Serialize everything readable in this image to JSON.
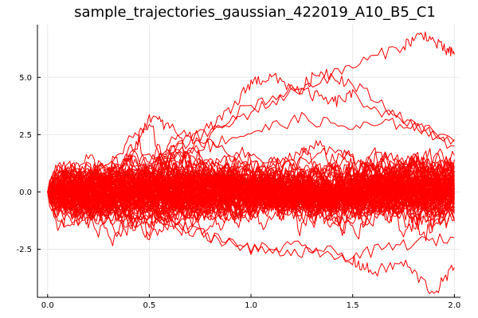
{
  "chart_data": {
    "type": "line",
    "title": "sample_trajectories_gaussian_422019_A10_B5_C1",
    "xlabel": "",
    "ylabel": "",
    "xlim": [
      -0.05,
      2.03
    ],
    "ylim": [
      -4.6,
      7.3
    ],
    "x_ticks": [
      0.0,
      0.5,
      1.0,
      1.5,
      2.0
    ],
    "x_tick_labels": [
      "0.0",
      "0.5",
      "1.0",
      "1.5",
      "2.0"
    ],
    "y_ticks": [
      -2.5,
      0.0,
      2.5,
      5.0
    ],
    "y_tick_labels": [
      "-2.5",
      "0.0",
      "2.5",
      "5.0"
    ],
    "grid": true,
    "legend": "none",
    "line_color": "#ff0000",
    "x_start": 0.0,
    "x_end": 2.0,
    "n_samples": 100,
    "highlighted_series": [
      {
        "x": [
          0.0,
          0.25,
          0.5,
          0.75,
          1.0,
          1.25,
          1.5,
          1.75,
          1.85,
          1.95,
          2.0
        ],
        "values": [
          0.0,
          0.5,
          0.8,
          2.2,
          3.5,
          4.5,
          5.5,
          6.4,
          6.9,
          6.2,
          6.0
        ]
      },
      {
        "x": [
          0.0,
          0.25,
          0.5,
          0.75,
          0.9,
          1.0,
          1.1,
          1.25,
          1.4,
          1.5,
          1.75,
          2.0
        ],
        "values": [
          0.0,
          0.8,
          1.5,
          2.5,
          3.5,
          4.8,
          5.0,
          4.4,
          3.9,
          4.2,
          3.0,
          2.2
        ]
      },
      {
        "x": [
          0.0,
          0.25,
          0.5,
          0.75,
          1.0,
          1.25,
          1.35,
          1.5,
          1.75,
          2.0
        ],
        "values": [
          0.0,
          0.5,
          1.2,
          2.5,
          3.8,
          4.6,
          5.3,
          4.7,
          3.2,
          2.0
        ]
      },
      {
        "x": [
          0.0,
          0.2,
          0.4,
          0.5,
          0.6,
          0.8,
          1.0,
          1.2,
          1.4,
          1.6,
          1.8,
          2.0
        ],
        "values": [
          0.0,
          0.5,
          1.5,
          3.3,
          2.8,
          2.0,
          1.6,
          1.2,
          1.8,
          1.0,
          1.4,
          1.0
        ]
      },
      {
        "x": [
          0.0,
          0.25,
          0.5,
          0.75,
          1.0,
          1.25,
          1.5,
          1.6,
          1.75,
          1.9,
          2.0
        ],
        "values": [
          0.0,
          -0.6,
          -1.2,
          -1.8,
          -2.5,
          -2.6,
          -3.0,
          -3.5,
          -3.1,
          -4.4,
          -3.3
        ]
      },
      {
        "x": [
          0.0,
          0.25,
          0.5,
          0.75,
          1.0,
          1.25,
          1.5,
          1.75,
          2.0
        ],
        "values": [
          0.0,
          -0.5,
          -1.0,
          -1.8,
          -2.5,
          -2.4,
          -2.8,
          -2.3,
          -2.0
        ]
      },
      {
        "x": [
          0.0,
          0.25,
          0.5,
          0.75,
          1.0,
          1.25,
          1.5,
          1.75,
          2.0
        ],
        "values": [
          0.0,
          0.6,
          1.4,
          2.0,
          2.6,
          3.2,
          2.8,
          3.0,
          2.3
        ]
      }
    ]
  }
}
